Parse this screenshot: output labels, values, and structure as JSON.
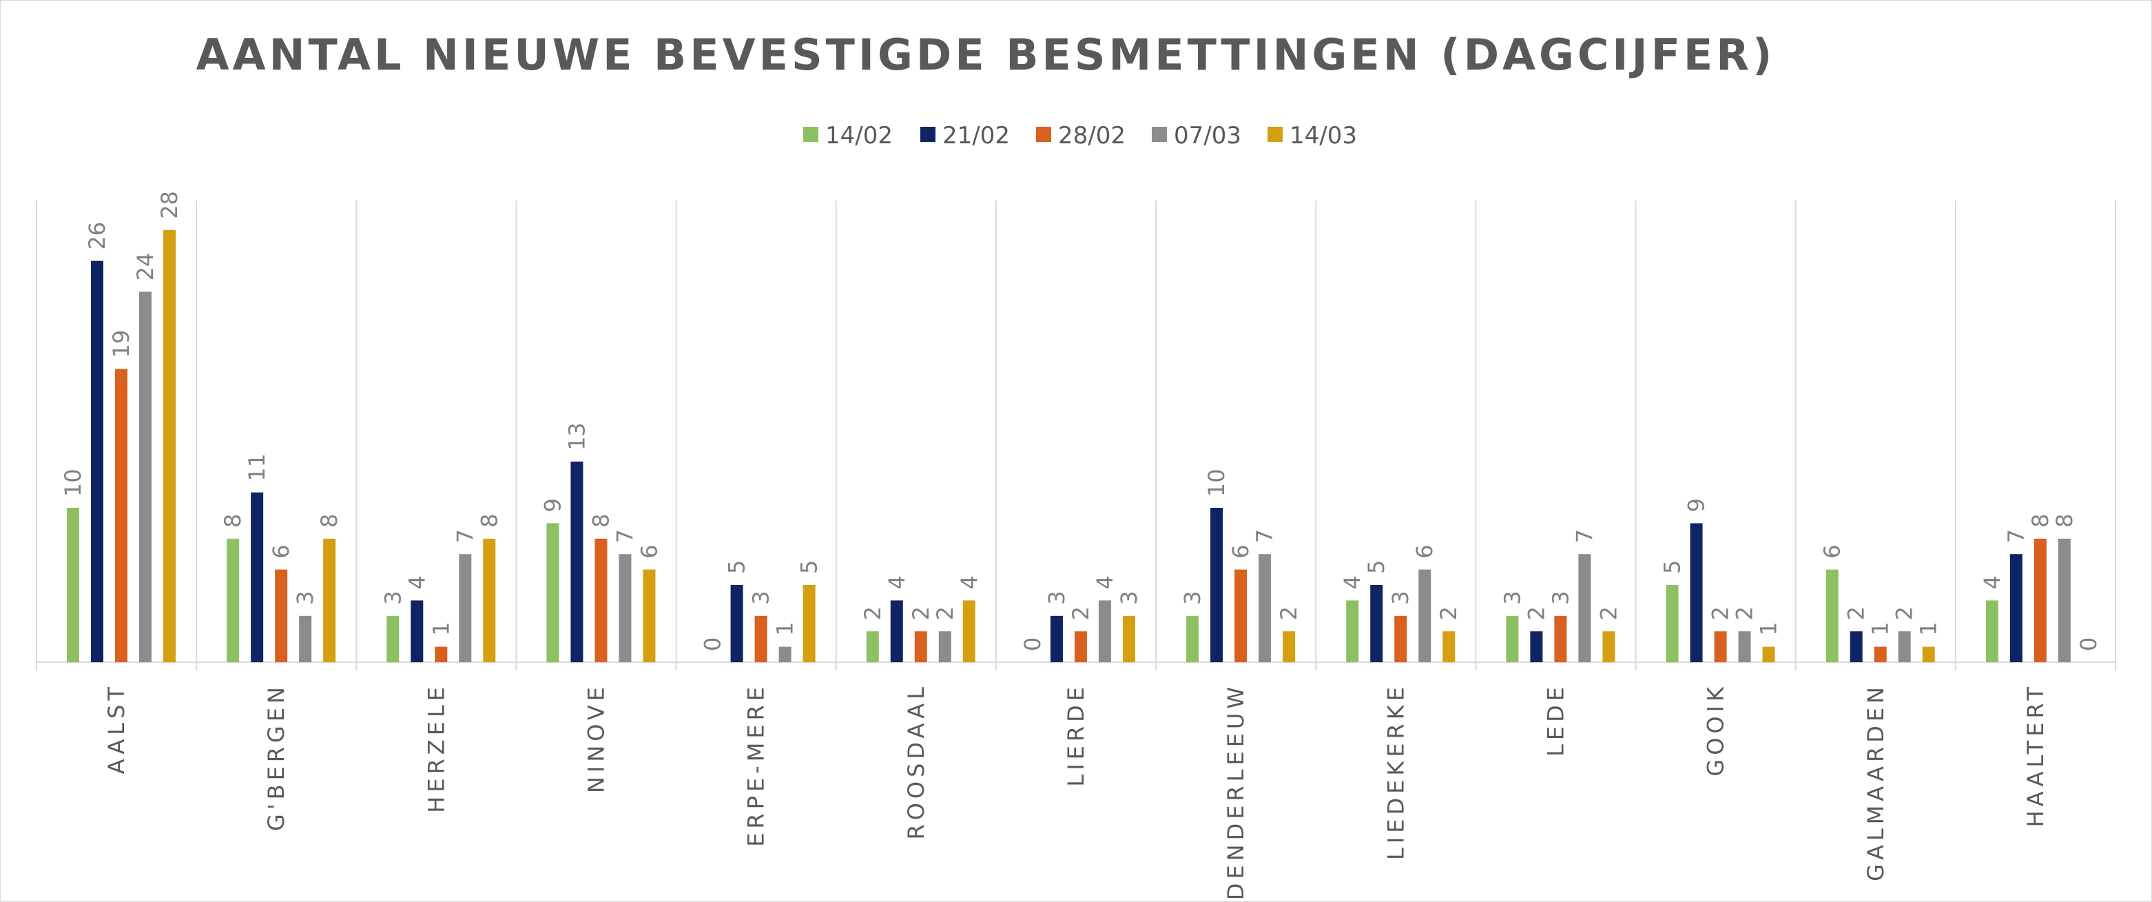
{
  "chart_data": {
    "type": "bar",
    "title": "AANTAL NIEUWE BEVESTIGDE BESMETTINGEN (DAGCIJFER)",
    "legend_position": "top",
    "grid": false,
    "ylim": [
      0,
      30
    ],
    "categories": [
      "AALST",
      "G'BERGEN",
      "HERZELE",
      "NINOVE",
      "ERPE-MERE",
      "ROOSDAAL",
      "LIERDE",
      "DENDERLEEUW",
      "LIEDEKERKE",
      "LEDE",
      "GOOIK",
      "GALMAARDEN",
      "HAALTERT"
    ],
    "series": [
      {
        "name": "14/02",
        "color": "#8dc063",
        "values": [
          10,
          8,
          3,
          9,
          0,
          2,
          0,
          3,
          4,
          3,
          5,
          6,
          4
        ]
      },
      {
        "name": "21/02",
        "color": "#0f2563",
        "values": [
          26,
          11,
          4,
          13,
          5,
          4,
          3,
          10,
          5,
          2,
          9,
          2,
          7
        ]
      },
      {
        "name": "28/02",
        "color": "#d9601e",
        "values": [
          19,
          6,
          1,
          8,
          3,
          2,
          2,
          6,
          3,
          3,
          2,
          1,
          8
        ]
      },
      {
        "name": "07/03",
        "color": "#8c8c8c",
        "values": [
          24,
          3,
          7,
          7,
          1,
          2,
          4,
          7,
          6,
          7,
          2,
          2,
          8
        ]
      },
      {
        "name": "14/03",
        "color": "#d4a011",
        "values": [
          28,
          8,
          8,
          6,
          5,
          4,
          3,
          2,
          2,
          2,
          1,
          1,
          0
        ]
      }
    ]
  }
}
